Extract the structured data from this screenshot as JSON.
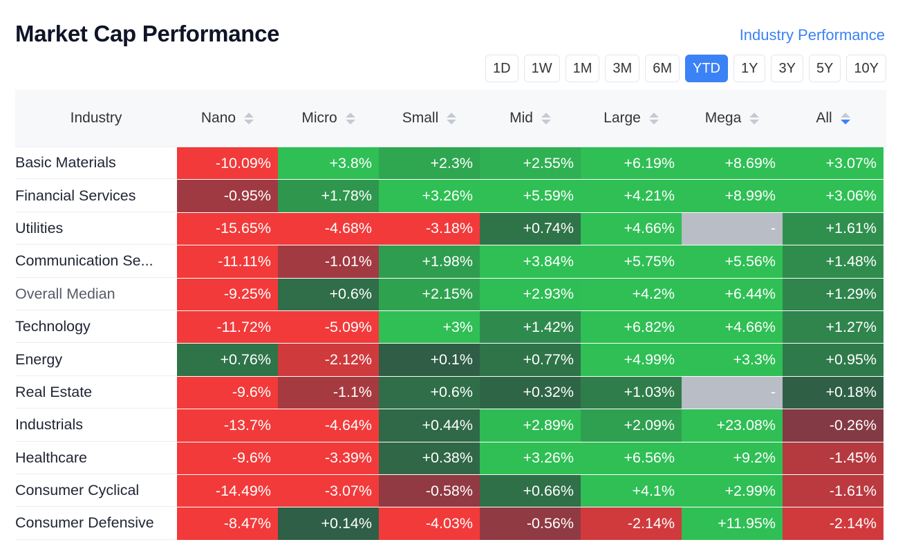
{
  "header": {
    "title": "Market Cap Performance",
    "link": "Industry Performance"
  },
  "periods": [
    {
      "label": "1D",
      "active": false
    },
    {
      "label": "1W",
      "active": false
    },
    {
      "label": "1M",
      "active": false
    },
    {
      "label": "3M",
      "active": false
    },
    {
      "label": "6M",
      "active": false
    },
    {
      "label": "YTD",
      "active": true
    },
    {
      "label": "1Y",
      "active": false
    },
    {
      "label": "3Y",
      "active": false
    },
    {
      "label": "5Y",
      "active": false
    },
    {
      "label": "10Y",
      "active": false
    }
  ],
  "table": {
    "columns": [
      "Industry",
      "Nano",
      "Micro",
      "Small",
      "Mid",
      "Large",
      "Mega",
      "All"
    ],
    "sorted_column": "All",
    "sort_direction": "descending",
    "rows": [
      {
        "industry": "Basic Materials",
        "values": [
          "-10.09%",
          "+3.8%",
          "+2.3%",
          "+2.55%",
          "+6.19%",
          "+8.69%",
          "+3.07%"
        ]
      },
      {
        "industry": "Financial Services",
        "values": [
          "-0.95%",
          "+1.78%",
          "+3.26%",
          "+5.59%",
          "+4.21%",
          "+8.99%",
          "+3.06%"
        ]
      },
      {
        "industry": "Utilities",
        "values": [
          "-15.65%",
          "-4.68%",
          "-3.18%",
          "+0.74%",
          "+4.66%",
          "-",
          "+1.61%"
        ]
      },
      {
        "industry": "Communication Se...",
        "values": [
          "-11.11%",
          "-1.01%",
          "+1.98%",
          "+3.84%",
          "+5.75%",
          "+5.56%",
          "+1.48%"
        ]
      },
      {
        "industry": "Overall Median",
        "values": [
          "-9.25%",
          "+0.6%",
          "+2.15%",
          "+2.93%",
          "+4.2%",
          "+6.44%",
          "+1.29%"
        ]
      },
      {
        "industry": "Technology",
        "values": [
          "-11.72%",
          "-5.09%",
          "+3%",
          "+1.42%",
          "+6.82%",
          "+4.66%",
          "+1.27%"
        ]
      },
      {
        "industry": "Energy",
        "values": [
          "+0.76%",
          "-2.12%",
          "+0.1%",
          "+0.77%",
          "+4.99%",
          "+3.3%",
          "+0.95%"
        ]
      },
      {
        "industry": "Real Estate",
        "values": [
          "-9.6%",
          "-1.1%",
          "+0.6%",
          "+0.32%",
          "+1.03%",
          "-",
          "+0.18%"
        ]
      },
      {
        "industry": "Industrials",
        "values": [
          "-13.7%",
          "-4.64%",
          "+0.44%",
          "+2.89%",
          "+2.09%",
          "+23.08%",
          "-0.26%"
        ]
      },
      {
        "industry": "Healthcare",
        "values": [
          "-9.6%",
          "-3.39%",
          "+0.38%",
          "+3.26%",
          "+6.56%",
          "+9.2%",
          "-1.45%"
        ]
      },
      {
        "industry": "Consumer Cyclical",
        "values": [
          "-14.49%",
          "-3.07%",
          "-0.58%",
          "+0.66%",
          "+4.1%",
          "+2.99%",
          "-1.61%"
        ]
      },
      {
        "industry": "Consumer Defensive",
        "values": [
          "-8.47%",
          "+0.14%",
          "-4.03%",
          "-0.56%",
          "-2.14%",
          "+11.95%",
          "-2.14%"
        ]
      }
    ]
  },
  "colors": {
    "accent": "#3b82f6",
    "positive_strong": "#2fbf55",
    "positive_dark": "#2f5a45",
    "negative_strong": "#f23a3a",
    "negative_dark": "#7a3a45",
    "empty": "#b9bdc6"
  }
}
